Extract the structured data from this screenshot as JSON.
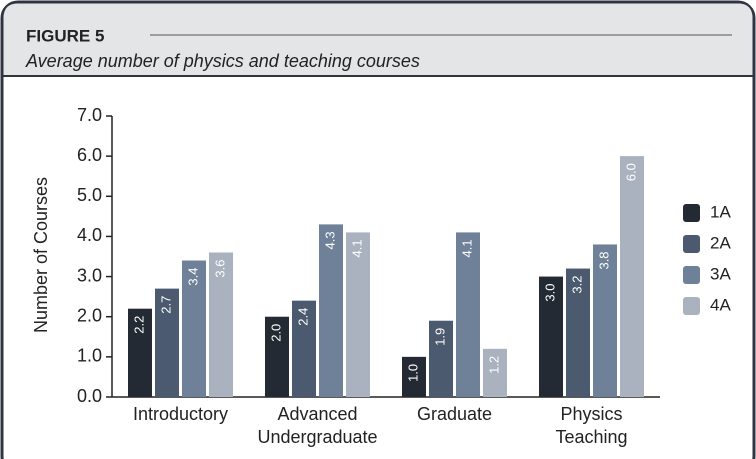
{
  "chart_data": {
    "type": "bar",
    "figure_label": "FIGURE 5",
    "title": "Average number of physics and teaching courses",
    "ylabel": "Number of Courses",
    "categories": [
      [
        "Introductory"
      ],
      [
        "Advanced",
        "Undergraduate"
      ],
      [
        "Graduate"
      ],
      [
        "Physics",
        "Teaching"
      ]
    ],
    "series": [
      {
        "name": "1A",
        "color": "#232a33",
        "values": [
          2.2,
          2.0,
          1.0,
          3.0
        ],
        "value_labels": [
          "2.2",
          "2.0",
          "1.0",
          "3.0"
        ]
      },
      {
        "name": "2A",
        "color": "#4b5a6f",
        "values": [
          2.7,
          2.4,
          1.9,
          3.2
        ],
        "value_labels": [
          "2.7",
          "2.4",
          "1.9",
          "3.2"
        ]
      },
      {
        "name": "3A",
        "color": "#6f8099",
        "values": [
          3.4,
          4.3,
          4.1,
          3.8
        ],
        "value_labels": [
          "3.4",
          "4.3",
          "4.1",
          "3.8"
        ]
      },
      {
        "name": "4A",
        "color": "#aab2bf",
        "values": [
          3.6,
          4.1,
          1.2,
          6.0
        ],
        "value_labels": [
          "3.6",
          "4.1",
          "1.2",
          "6.0"
        ]
      }
    ],
    "ylim": [
      0,
      7
    ],
    "yticks": [
      {
        "value": 0,
        "label": "0.0"
      },
      {
        "value": 1,
        "label": "1.0"
      },
      {
        "value": 2,
        "label": "2.0"
      },
      {
        "value": 3,
        "label": "3.0"
      },
      {
        "value": 4,
        "label": "4.0"
      },
      {
        "value": 5,
        "label": "5.0"
      },
      {
        "value": 6,
        "label": "6.0"
      },
      {
        "value": 7,
        "label": "7.0"
      }
    ],
    "legend": "right"
  }
}
